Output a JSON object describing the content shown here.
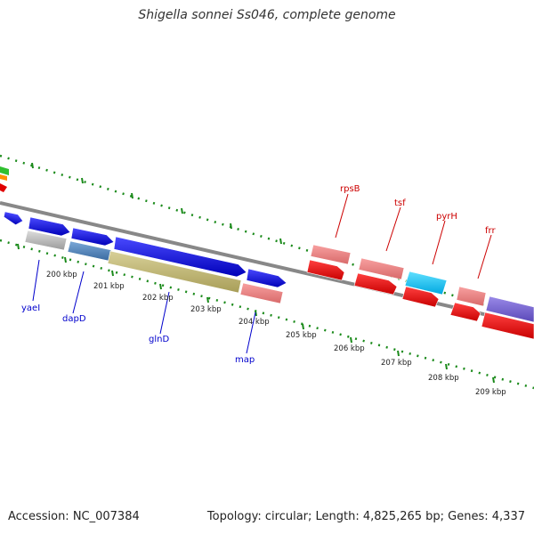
{
  "title": "Shigella sonnei Ss046, complete genome",
  "footer": {
    "accession": "Accession: NC_007384",
    "summary": "Topology: circular; Length: 4,825,265 bp; Genes: 4,337"
  },
  "colors": {
    "background": "#ffffff",
    "backbone": "#888888",
    "tick": "#1a8a1a",
    "forward_label": "#0000cc",
    "reverse_label": "#cc0000"
  },
  "scale_labels": [
    "200 kbp",
    "201 kbp",
    "202 kbp",
    "203 kbp",
    "204 kbp",
    "205 kbp",
    "206 kbp",
    "207 kbp",
    "208 kbp",
    "209 kbp"
  ],
  "gene_labels": [
    {
      "name": "yaeI",
      "strand": "forward"
    },
    {
      "name": "dapD",
      "strand": "forward"
    },
    {
      "name": "glnD",
      "strand": "forward"
    },
    {
      "name": "map",
      "strand": "forward"
    },
    {
      "name": "rpsB",
      "strand": "reverse"
    },
    {
      "name": "tsf",
      "strand": "reverse"
    },
    {
      "name": "pyrH",
      "strand": "reverse"
    },
    {
      "name": "frr",
      "strand": "reverse"
    }
  ]
}
